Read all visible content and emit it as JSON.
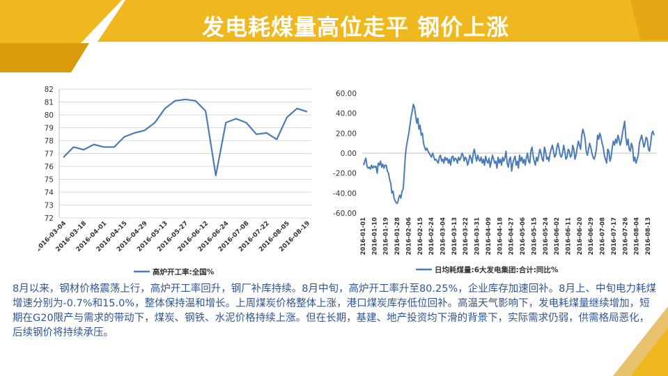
{
  "slide": {
    "title": "发电耗煤量高位走平  钢价上涨",
    "paragraph": "8月以来，钢材价格震荡上行，高炉开工率回升，钢厂补库持续。8月中旬，高炉开工率升至80.25%，企业库存加速回补。8月上、中旬电力耗煤增速分别为-0.7%和15.0%，整体保持温和增长。上周煤炭价格整体上涨，港口煤炭库存低位回补。高温天气影响下，发电耗煤量继续增加，短期在G20限产与需求的带动下，煤炭、钢铁、水泥价格持续上涨。但在长期，基建、地产投资均下滑的背景下，实际需求仍弱，供需格局恶化，后续钢价将持续承压。",
    "colors": {
      "accent": "#f0b81f",
      "accent_dark": "#d99a0b",
      "line": "#4a7bb7",
      "text": "#2f5597"
    }
  },
  "chart_data": [
    {
      "type": "line",
      "legend": "高炉开工率:全国%",
      "ylim": [
        72,
        82
      ],
      "yticks": [
        72,
        73,
        74,
        75,
        76,
        77,
        78,
        79,
        80,
        81,
        82
      ],
      "xticks": [
        "2016-03-04",
        "2016-03-18",
        "2016-04-01",
        "2016-04-15",
        "2016-04-29",
        "2016-05-13",
        "2016-05-27",
        "2016-06-12",
        "2016-06-24",
        "2016-07-08",
        "2016-07-22",
        "2016-08-05",
        "2016-08-19"
      ],
      "x": [
        "2016-03-04",
        "2016-03-11",
        "2016-03-18",
        "2016-03-25",
        "2016-04-01",
        "2016-04-08",
        "2016-04-15",
        "2016-04-22",
        "2016-04-29",
        "2016-05-06",
        "2016-05-13",
        "2016-05-20",
        "2016-05-27",
        "2016-06-03",
        "2016-06-12",
        "2016-06-17",
        "2016-06-24",
        "2016-07-01",
        "2016-07-08",
        "2016-07-15",
        "2016-07-22",
        "2016-07-29",
        "2016-08-05",
        "2016-08-12",
        "2016-08-19"
      ],
      "values": [
        76.7,
        77.5,
        77.3,
        77.7,
        77.5,
        77.5,
        78.3,
        78.6,
        78.8,
        79.4,
        80.5,
        81.1,
        81.2,
        81.1,
        80.3,
        75.3,
        79.4,
        79.7,
        79.4,
        78.5,
        78.6,
        78.1,
        79.8,
        80.5,
        80.25
      ]
    },
    {
      "type": "line",
      "legend": "日均耗煤量:6大发电集团:合计:同比%",
      "ylim": [
        -60,
        60
      ],
      "yticks": [
        "60.00",
        "40.00",
        "20.00",
        "0.00",
        "-20.00",
        "-40.00",
        "-60.00"
      ],
      "xticks": [
        "2016-01-01",
        "2016-01-10",
        "2016-01-19",
        "2016-01-28",
        "2016-02-06",
        "2016-02-15",
        "2016-02-24",
        "2016-03-04",
        "2016-03-13",
        "2016-03-22",
        "2016-03-31",
        "2016-04-09",
        "2016-04-18",
        "2016-04-27",
        "2016-05-06",
        "2016-05-15",
        "2016-05-24",
        "2016-06-02",
        "2016-06-11",
        "2016-06-20",
        "2016-06-29",
        "2016-07-08",
        "2016-07-17",
        "2016-07-26",
        "2016-08-04",
        "2016-08-13"
      ],
      "values": [
        -12,
        -8,
        -5,
        -13,
        -15,
        -14,
        -16,
        -12,
        -15,
        -13,
        -14,
        -13,
        -20,
        -10,
        -12,
        -8,
        -14,
        -11,
        -15,
        -12,
        -12,
        -18,
        -20,
        -26,
        -30,
        -40,
        -38,
        -45,
        -48,
        -50,
        -50,
        -45,
        -42,
        -45,
        -38,
        -36,
        -20,
        -2,
        8,
        14,
        20,
        28,
        36,
        42,
        49,
        46,
        38,
        30,
        35,
        24,
        28,
        18,
        20,
        10,
        6,
        3,
        5,
        2,
        0,
        -2,
        -4,
        0,
        -3,
        -7,
        -6,
        -8,
        -10,
        -4,
        -2,
        -8,
        -6,
        -10,
        -4,
        -7,
        -5,
        -10,
        -6,
        -12,
        -4,
        -3,
        -8,
        -5,
        -6,
        -10,
        -4,
        -7,
        -5,
        0,
        -2,
        -8,
        -4,
        -6,
        -12,
        -8,
        -2,
        -5,
        -10,
        0,
        4,
        -3,
        -8,
        -2,
        -6,
        -8,
        -4,
        -10,
        -6,
        -12,
        -3,
        -8,
        -10,
        -5,
        -14,
        -8,
        -2,
        -6,
        -10,
        -8,
        -15,
        -4,
        -10,
        -6,
        -12,
        -4,
        -8,
        -5,
        2,
        -10,
        -14,
        -6,
        -4,
        -18,
        -10,
        -6,
        -3,
        -12,
        -8,
        -15,
        -2,
        -8,
        -4,
        -10,
        -6,
        -12,
        -5,
        0,
        -8,
        -10,
        2,
        6,
        -3,
        -8,
        -12,
        -4,
        -8,
        -2,
        4,
        0,
        -6,
        -8,
        6,
        2,
        -6,
        -4,
        -8,
        0,
        4,
        8,
        2,
        -4,
        -2,
        6,
        10,
        4,
        -2,
        -4,
        0,
        8,
        2,
        -6,
        -4,
        4,
        2,
        -4,
        -2,
        8,
        4,
        -6,
        -2,
        6,
        12,
        8,
        4,
        18,
        24,
        20,
        14,
        2,
        -2,
        4,
        10,
        6,
        0,
        -4,
        -6,
        -2,
        4,
        18,
        14,
        20,
        16,
        10,
        6,
        -2,
        -6,
        -10,
        4,
        2,
        -8,
        -4,
        6,
        12,
        8,
        14,
        10,
        18,
        14,
        8,
        12,
        20,
        26,
        32,
        16,
        8,
        14,
        4,
        2,
        10,
        6,
        -8,
        -4,
        -10,
        -6,
        -2,
        10,
        14,
        18,
        12,
        6,
        10,
        16,
        14,
        4,
        2,
        10,
        20,
        22,
        18
      ]
    }
  ]
}
